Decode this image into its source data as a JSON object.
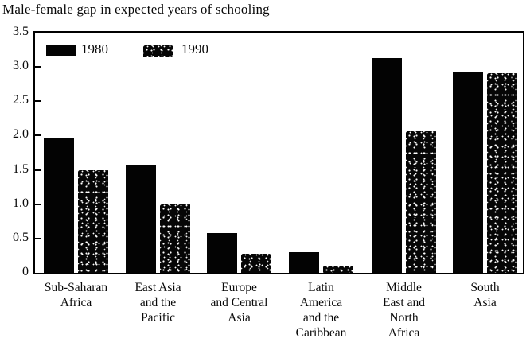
{
  "title": "Male-female gap in expected years of schooling",
  "legend": {
    "items": [
      {
        "label": "1980",
        "swatch": "solid-black"
      },
      {
        "label": "1990",
        "swatch": "black-speckled"
      }
    ]
  },
  "y_axis": {
    "ticks": [
      "3.5",
      "3.0",
      "2.5",
      "2.0",
      "1.5",
      "1.0",
      "0.5",
      "0"
    ],
    "min": 0,
    "max": 3.5
  },
  "colors": {
    "bar_1980": "#000000",
    "bar_1990": "#000000",
    "background": "#ffffff",
    "text": "#0a0a0a"
  },
  "chart_data": {
    "type": "bar",
    "title": "Male-female gap in expected years of schooling",
    "categories": [
      "Sub-Saharan Africa",
      "East Asia and the Pacific",
      "Europe and Central Asia",
      "Latin America and the Caribbean",
      "Middle East and North Africa",
      "South Asia"
    ],
    "category_lines": [
      [
        "Sub-Saharan",
        "Africa"
      ],
      [
        "East Asia",
        "and the",
        "Pacific"
      ],
      [
        "Europe",
        "and Central",
        "Asia"
      ],
      [
        "Latin",
        "America",
        "and the",
        "Caribbean"
      ],
      [
        "Middle",
        "East and",
        "North",
        "Africa"
      ],
      [
        "South",
        "Asia"
      ]
    ],
    "series": [
      {
        "name": "1980",
        "values": [
          1.97,
          1.57,
          0.58,
          0.3,
          3.13,
          2.93
        ]
      },
      {
        "name": "1990",
        "values": [
          1.5,
          1.0,
          0.28,
          0.1,
          2.06,
          2.91
        ]
      }
    ],
    "xlabel": "",
    "ylabel": "",
    "ylim": [
      0,
      3.5
    ],
    "ytick_step": 0.5,
    "grid": false,
    "legend_position": "top-left-inside"
  }
}
